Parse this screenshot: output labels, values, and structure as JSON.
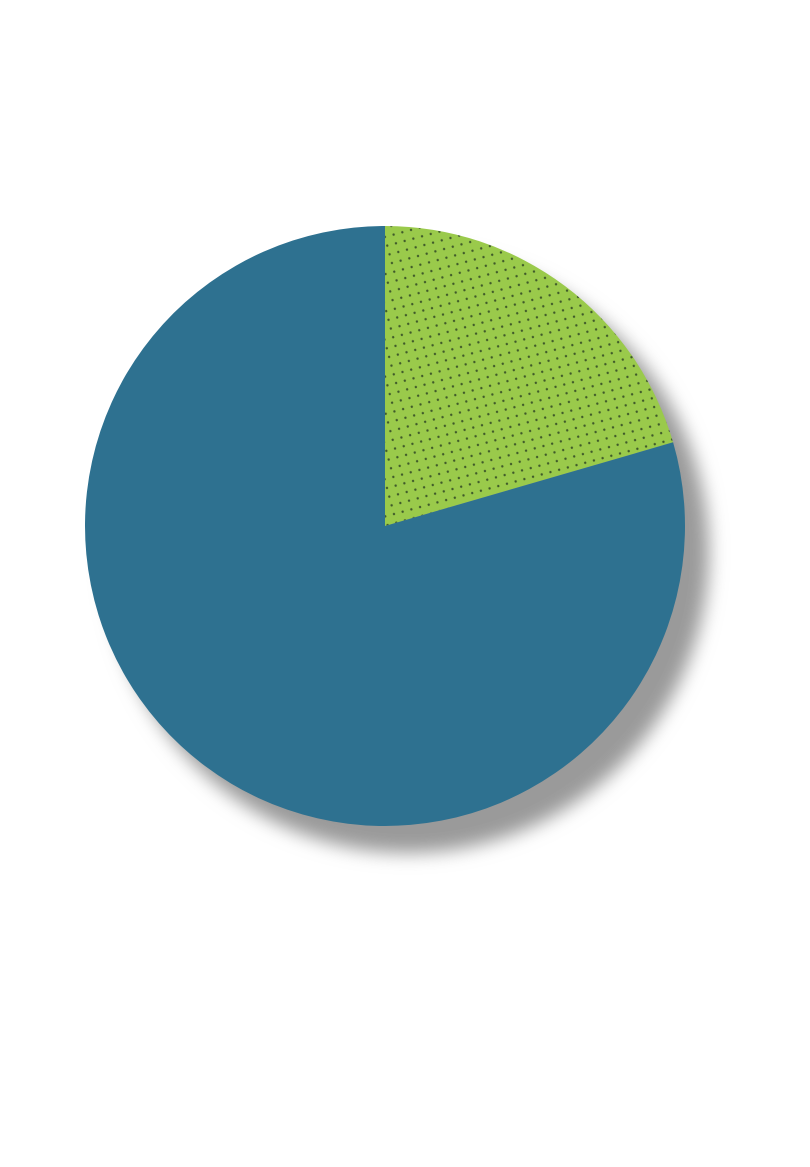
{
  "chart_data": {
    "type": "pie",
    "title": "",
    "start_angle_deg": 0,
    "direction": "clockwise",
    "legend": "none",
    "data_labels": "none",
    "slices": [
      {
        "label": "",
        "value": 20.5,
        "color": "#9ACA4B",
        "pattern": "dotted",
        "pattern_color": "#3F5A2A"
      },
      {
        "label": "",
        "value": 79.5,
        "color": "#2E7190",
        "pattern": "none"
      }
    ],
    "shadow": true,
    "shadow_color": "#9A9A9A"
  }
}
